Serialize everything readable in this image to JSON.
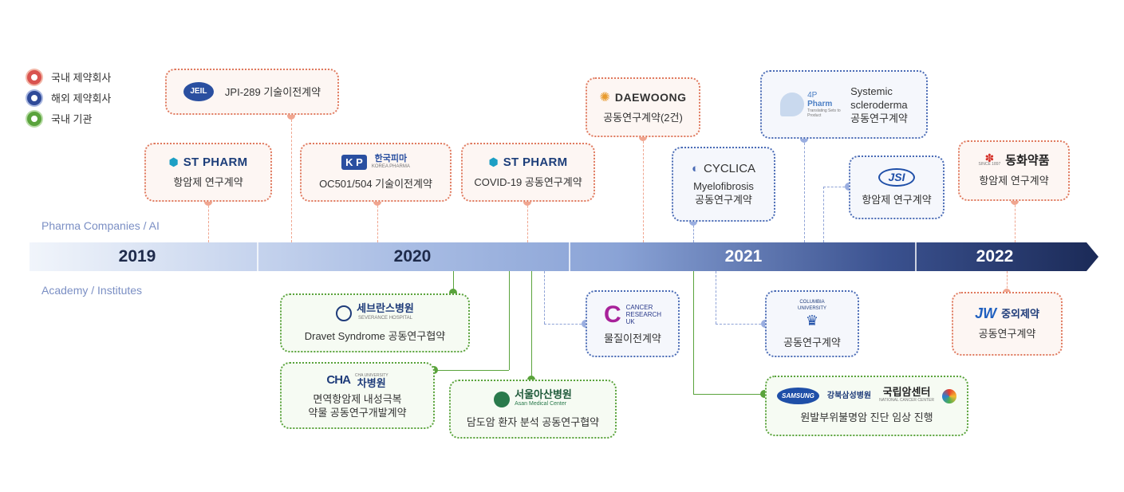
{
  "legend": {
    "items": [
      {
        "label": "국내 제약회사",
        "color": "#d9534f"
      },
      {
        "label": "해외 제약회사",
        "color": "#2f4a99"
      },
      {
        "label": "국내 기관",
        "color": "#5aa33c"
      }
    ]
  },
  "side_labels": {
    "top": "Pharma Companies / AI",
    "bottom": "Academy / Institutes"
  },
  "timeline": {
    "years": [
      "2019",
      "2020",
      "2021",
      "2022"
    ],
    "colors": {
      "start": "#e6edf8",
      "mid": "#9db3df",
      "end": "#1e2e5c"
    }
  },
  "cards": {
    "jeil": {
      "logo": "JEIL",
      "text": "JPI-289 기술이전계약"
    },
    "stpharm1": {
      "logo": "ST PHARM",
      "text": "항암제 연구계약"
    },
    "kp": {
      "logo_main": "K P",
      "logo_kr": "한국피마",
      "logo_en": "KOREA PHARMA",
      "text": "OC501/504 기술이전계약"
    },
    "stpharm2": {
      "logo": "ST PHARM",
      "text": "COVID-19 공동연구계약"
    },
    "daewoong": {
      "logo": "DAEWOONG",
      "text": "공동연구계약(2건)"
    },
    "cyclica": {
      "logo": "CYCLICA",
      "line1": "Myelofibrosis",
      "line2": "공동연구계약"
    },
    "fourp": {
      "logo_main": "4P",
      "logo_sub": "Pharm",
      "logo_tag": "Translating Sets to Product",
      "line1": "Systemic",
      "line2": "scleroderma",
      "line3": "공동연구계약"
    },
    "jsi": {
      "logo": "JSI",
      "text": "항암제 연구계약"
    },
    "dongwha": {
      "logo": "동화약품",
      "logo_tag": "SINCE 1897",
      "text": "항암제 연구계약"
    },
    "severance": {
      "logo_kr": "세브란스병원",
      "logo_en": "SEVERANCE HOSPITAL",
      "text": "Dravet Syndrome 공동연구협약"
    },
    "cha": {
      "logo": "CHA",
      "logo_tag": "CHA UNIVERSITY",
      "logo_kr": "차병원",
      "line1": "면역항암제 내성극복",
      "line2": "약물 공동연구개발계약"
    },
    "asan": {
      "logo_kr": "서울아산병원",
      "logo_en": "Asan Medical Center",
      "text": "담도암 환자 분석 공동연구협약"
    },
    "cancer_uk": {
      "logo_lines": [
        "CANCER",
        "RESEARCH",
        "UK"
      ],
      "text": "물질이전계약"
    },
    "columbia": {
      "logo_lines": [
        "COLUMBIA",
        "UNIVERSITY"
      ],
      "text": "공동연구계약"
    },
    "samsung": {
      "logo_samsung": "SAMSUNG",
      "logo_kr1": "강북삼성병원",
      "logo_kr2": "국립암센터",
      "logo_en2": "NATIONAL CANCER CENTER",
      "text": "원발부위불명암 진단 임상 진행"
    },
    "jw": {
      "logo_en": "JW",
      "logo_kr": "중외제약",
      "text": "공동연구계약"
    }
  }
}
